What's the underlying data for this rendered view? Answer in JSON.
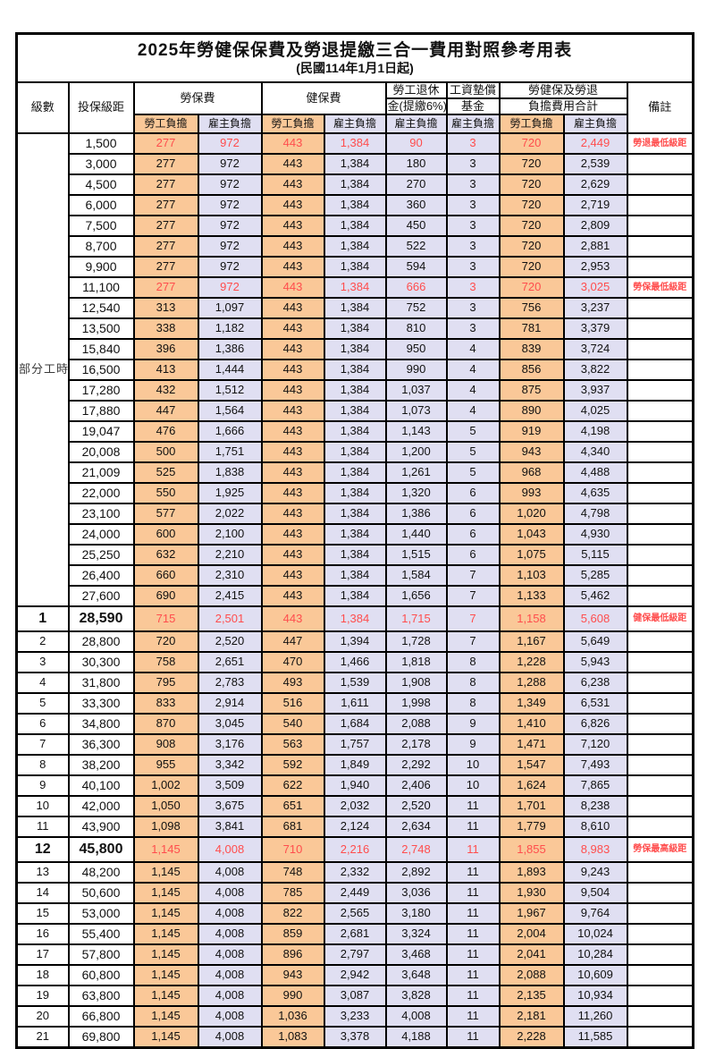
{
  "page": {
    "background": "#ffffff"
  },
  "colors": {
    "employee_bg": "#FAC898",
    "employer_bg": "#E0DFF2",
    "highlight_red": "#FF4D4D",
    "border": "#000000"
  },
  "table": {
    "title": "2025年勞健保保費及勞退提繳三合一費用對照參考用表",
    "subtitle": "(民國114年1月1日起)",
    "headers": {
      "level": "級數",
      "bracket": "投保級距",
      "labor_insurance": "勞保費",
      "health_insurance": "健保費",
      "pension_line1": "勞工退休",
      "pension_line2": "金(提繳6%)",
      "wage_fund_line1": "工資墊償",
      "wage_fund_line2": "基金",
      "total_line1": "勞健保及勞退",
      "total_line2": "負擔費用合計",
      "remark": "備註",
      "employee": "勞工負擔",
      "employer": "雇主負擔"
    },
    "group_label": "部分工時",
    "group_rowspan": 23,
    "column_classes": [
      "emp",
      "er",
      "emp",
      "er",
      "er",
      "er",
      "emp",
      "er"
    ],
    "rows": [
      [
        "",
        "1,500",
        "277",
        "972",
        "443",
        "1,384",
        "90",
        "3",
        "720",
        "2,449",
        "勞退最低級距",
        "red"
      ],
      [
        "",
        "3,000",
        "277",
        "972",
        "443",
        "1,384",
        "180",
        "3",
        "720",
        "2,539",
        "",
        ""
      ],
      [
        "",
        "4,500",
        "277",
        "972",
        "443",
        "1,384",
        "270",
        "3",
        "720",
        "2,629",
        "",
        ""
      ],
      [
        "",
        "6,000",
        "277",
        "972",
        "443",
        "1,384",
        "360",
        "3",
        "720",
        "2,719",
        "",
        ""
      ],
      [
        "",
        "7,500",
        "277",
        "972",
        "443",
        "1,384",
        "450",
        "3",
        "720",
        "2,809",
        "",
        ""
      ],
      [
        "",
        "8,700",
        "277",
        "972",
        "443",
        "1,384",
        "522",
        "3",
        "720",
        "2,881",
        "",
        ""
      ],
      [
        "",
        "9,900",
        "277",
        "972",
        "443",
        "1,384",
        "594",
        "3",
        "720",
        "2,953",
        "",
        ""
      ],
      [
        "",
        "11,100",
        "277",
        "972",
        "443",
        "1,384",
        "666",
        "3",
        "720",
        "3,025",
        "勞保最低級距",
        "red"
      ],
      [
        "",
        "12,540",
        "313",
        "1,097",
        "443",
        "1,384",
        "752",
        "3",
        "756",
        "3,237",
        "",
        ""
      ],
      [
        "",
        "13,500",
        "338",
        "1,182",
        "443",
        "1,384",
        "810",
        "3",
        "781",
        "3,379",
        "",
        ""
      ],
      [
        "",
        "15,840",
        "396",
        "1,386",
        "443",
        "1,384",
        "950",
        "4",
        "839",
        "3,724",
        "",
        ""
      ],
      [
        "",
        "16,500",
        "413",
        "1,444",
        "443",
        "1,384",
        "990",
        "4",
        "856",
        "3,822",
        "",
        ""
      ],
      [
        "",
        "17,280",
        "432",
        "1,512",
        "443",
        "1,384",
        "1,037",
        "4",
        "875",
        "3,937",
        "",
        ""
      ],
      [
        "",
        "17,880",
        "447",
        "1,564",
        "443",
        "1,384",
        "1,073",
        "4",
        "890",
        "4,025",
        "",
        ""
      ],
      [
        "",
        "19,047",
        "476",
        "1,666",
        "443",
        "1,384",
        "1,143",
        "5",
        "919",
        "4,198",
        "",
        ""
      ],
      [
        "",
        "20,008",
        "500",
        "1,751",
        "443",
        "1,384",
        "1,200",
        "5",
        "943",
        "4,340",
        "",
        ""
      ],
      [
        "",
        "21,009",
        "525",
        "1,838",
        "443",
        "1,384",
        "1,261",
        "5",
        "968",
        "4,488",
        "",
        ""
      ],
      [
        "",
        "22,000",
        "550",
        "1,925",
        "443",
        "1,384",
        "1,320",
        "6",
        "993",
        "4,635",
        "",
        ""
      ],
      [
        "",
        "23,100",
        "577",
        "2,022",
        "443",
        "1,384",
        "1,386",
        "6",
        "1,020",
        "4,798",
        "",
        ""
      ],
      [
        "",
        "24,000",
        "600",
        "2,100",
        "443",
        "1,384",
        "1,440",
        "6",
        "1,043",
        "4,930",
        "",
        ""
      ],
      [
        "",
        "25,250",
        "632",
        "2,210",
        "443",
        "1,384",
        "1,515",
        "6",
        "1,075",
        "5,115",
        "",
        ""
      ],
      [
        "",
        "26,400",
        "660",
        "2,310",
        "443",
        "1,384",
        "1,584",
        "7",
        "1,103",
        "5,285",
        "",
        ""
      ],
      [
        "",
        "27,600",
        "690",
        "2,415",
        "443",
        "1,384",
        "1,656",
        "7",
        "1,133",
        "5,462",
        "",
        ""
      ],
      [
        "1",
        "28,590",
        "715",
        "2,501",
        "443",
        "1,384",
        "1,715",
        "7",
        "1,158",
        "5,608",
        "健保最低級距",
        "red big"
      ],
      [
        "2",
        "28,800",
        "720",
        "2,520",
        "447",
        "1,394",
        "1,728",
        "7",
        "1,167",
        "5,649",
        "",
        ""
      ],
      [
        "3",
        "30,300",
        "758",
        "2,651",
        "470",
        "1,466",
        "1,818",
        "8",
        "1,228",
        "5,943",
        "",
        ""
      ],
      [
        "4",
        "31,800",
        "795",
        "2,783",
        "493",
        "1,539",
        "1,908",
        "8",
        "1,288",
        "6,238",
        "",
        ""
      ],
      [
        "5",
        "33,300",
        "833",
        "2,914",
        "516",
        "1,611",
        "1,998",
        "8",
        "1,349",
        "6,531",
        "",
        ""
      ],
      [
        "6",
        "34,800",
        "870",
        "3,045",
        "540",
        "1,684",
        "2,088",
        "9",
        "1,410",
        "6,826",
        "",
        ""
      ],
      [
        "7",
        "36,300",
        "908",
        "3,176",
        "563",
        "1,757",
        "2,178",
        "9",
        "1,471",
        "7,120",
        "",
        ""
      ],
      [
        "8",
        "38,200",
        "955",
        "3,342",
        "592",
        "1,849",
        "2,292",
        "10",
        "1,547",
        "7,493",
        "",
        ""
      ],
      [
        "9",
        "40,100",
        "1,002",
        "3,509",
        "622",
        "1,940",
        "2,406",
        "10",
        "1,624",
        "7,865",
        "",
        ""
      ],
      [
        "10",
        "42,000",
        "1,050",
        "3,675",
        "651",
        "2,032",
        "2,520",
        "11",
        "1,701",
        "8,238",
        "",
        ""
      ],
      [
        "11",
        "43,900",
        "1,098",
        "3,841",
        "681",
        "2,124",
        "2,634",
        "11",
        "1,779",
        "8,610",
        "",
        ""
      ],
      [
        "12",
        "45,800",
        "1,145",
        "4,008",
        "710",
        "2,216",
        "2,748",
        "11",
        "1,855",
        "8,983",
        "勞保最高級距",
        "red big"
      ],
      [
        "13",
        "48,200",
        "1,145",
        "4,008",
        "748",
        "2,332",
        "2,892",
        "11",
        "1,893",
        "9,243",
        "",
        ""
      ],
      [
        "14",
        "50,600",
        "1,145",
        "4,008",
        "785",
        "2,449",
        "3,036",
        "11",
        "1,930",
        "9,504",
        "",
        ""
      ],
      [
        "15",
        "53,000",
        "1,145",
        "4,008",
        "822",
        "2,565",
        "3,180",
        "11",
        "1,967",
        "9,764",
        "",
        ""
      ],
      [
        "16",
        "55,400",
        "1,145",
        "4,008",
        "859",
        "2,681",
        "3,324",
        "11",
        "2,004",
        "10,024",
        "",
        ""
      ],
      [
        "17",
        "57,800",
        "1,145",
        "4,008",
        "896",
        "2,797",
        "3,468",
        "11",
        "2,041",
        "10,284",
        "",
        ""
      ],
      [
        "18",
        "60,800",
        "1,145",
        "4,008",
        "943",
        "2,942",
        "3,648",
        "11",
        "2,088",
        "10,609",
        "",
        ""
      ],
      [
        "19",
        "63,800",
        "1,145",
        "4,008",
        "990",
        "3,087",
        "3,828",
        "11",
        "2,135",
        "10,934",
        "",
        ""
      ],
      [
        "20",
        "66,800",
        "1,145",
        "4,008",
        "1,036",
        "3,233",
        "4,008",
        "11",
        "2,181",
        "11,260",
        "",
        ""
      ],
      [
        "21",
        "69,800",
        "1,145",
        "4,008",
        "1,083",
        "3,378",
        "4,188",
        "11",
        "2,228",
        "11,585",
        "",
        ""
      ]
    ]
  }
}
